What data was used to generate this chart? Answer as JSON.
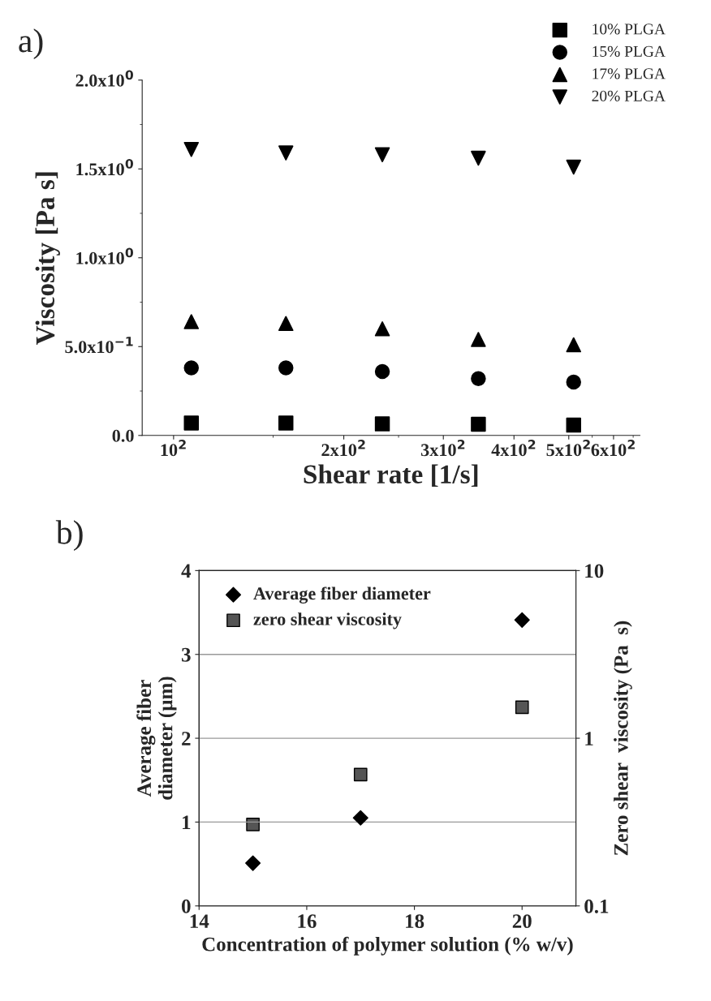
{
  "chart_data": [
    {
      "type": "scatter",
      "title": "a)",
      "xlabel": "Shear rate [1/s]",
      "ylabel": "Viscosity [Pa s]",
      "log": "x",
      "x": [
        107.5,
        158,
        234,
        346,
        510
      ],
      "series": [
        {
          "name": "10% PLGA",
          "color": "#000000",
          "marker": "square",
          "values": [
            0.07,
            0.07,
            0.065,
            0.063,
            0.058
          ]
        },
        {
          "name": "15% PLGA",
          "color": "#000000",
          "marker": "circle",
          "values": [
            0.38,
            0.38,
            0.36,
            0.32,
            0.3
          ]
        },
        {
          "name": "17% PLGA",
          "color": "#000000",
          "marker": "triangle",
          "values": [
            0.64,
            0.63,
            0.6,
            0.54,
            0.51
          ]
        },
        {
          "name": "20% PLGA",
          "color": "#000000",
          "marker": "triangle_down",
          "values": [
            1.61,
            1.59,
            1.58,
            1.56,
            1.51
          ]
        }
      ],
      "xlim": [
        88,
        668
      ],
      "xticks": [
        {
          "value": 100,
          "label": "10$^{2}$"
        },
        {
          "value": 200,
          "label": "2x10$^{2}$"
        },
        {
          "value": 300,
          "label": "3x10$^{2}$"
        },
        {
          "value": 400,
          "label": "4x10$^{2}$"
        },
        {
          "value": 500,
          "label": "5x10$^{2}$"
        },
        {
          "value": 600,
          "label": "6x10$^{2}$"
        }
      ],
      "ylim": [
        0,
        2.0
      ],
      "yticks": [
        {
          "value": 0,
          "label": "0.0"
        },
        {
          "value": 0.5,
          "label": "5.0x10$^{−1}$"
        },
        {
          "value": 1.0,
          "label": "1.0x10$^{0}$"
        },
        {
          "value": 1.5,
          "label": "1.5x10$^{0}$"
        },
        {
          "value": 2.0,
          "label": "2.0x10$^{0}$"
        }
      ],
      "grid": false,
      "legend": "top right"
    },
    {
      "type": "scatter",
      "title": "b)",
      "xlabel": "Concentration of polymer solution (% w/v)",
      "ylabel": "Average fiber\ndiameter (µm)",
      "y2label": "Zero shear  viscosity (Pa  s)",
      "log": "y2",
      "x": [
        15,
        17,
        20
      ],
      "series": [
        {
          "name": "Average fiber diameter",
          "color": "#000000",
          "marker": "diamond",
          "values": [
            0.51,
            1.05,
            3.41
          ]
        },
        {
          "name": "zero shear viscosity",
          "color": "#555555",
          "marker": "square",
          "axis": "y2",
          "values": [
            0.306,
            0.607,
            1.53
          ]
        }
      ],
      "xlim": [
        14,
        21
      ],
      "xticks": [
        14,
        16,
        18,
        20
      ],
      "ylim": [
        0,
        4
      ],
      "yticks": [
        0,
        1,
        2,
        3,
        4
      ],
      "y2lim": [
        0.1,
        10
      ],
      "y2ticks": [
        0.1,
        1,
        10
      ],
      "grid": "y",
      "legend": "top left"
    }
  ]
}
